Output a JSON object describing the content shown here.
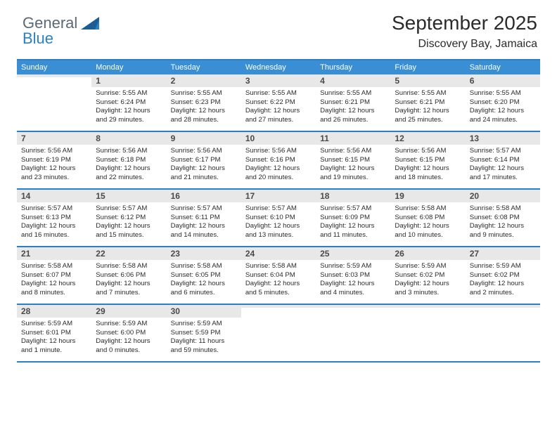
{
  "brand": {
    "part1": "General",
    "part2": "Blue"
  },
  "header": {
    "title": "September 2025",
    "location": "Discovery Bay, Jamaica"
  },
  "colors": {
    "accent": "#2d7fc4",
    "header_row": "#3a8fd4",
    "daynum_bg": "#e8e8e8",
    "logo_gray": "#5a6a74"
  },
  "dayNames": [
    "Sunday",
    "Monday",
    "Tuesday",
    "Wednesday",
    "Thursday",
    "Friday",
    "Saturday"
  ],
  "weeks": [
    [
      {
        "n": "",
        "sunrise": "",
        "sunset": "",
        "daylight": ""
      },
      {
        "n": "1",
        "sunrise": "Sunrise: 5:55 AM",
        "sunset": "Sunset: 6:24 PM",
        "daylight": "Daylight: 12 hours and 29 minutes."
      },
      {
        "n": "2",
        "sunrise": "Sunrise: 5:55 AM",
        "sunset": "Sunset: 6:23 PM",
        "daylight": "Daylight: 12 hours and 28 minutes."
      },
      {
        "n": "3",
        "sunrise": "Sunrise: 5:55 AM",
        "sunset": "Sunset: 6:22 PM",
        "daylight": "Daylight: 12 hours and 27 minutes."
      },
      {
        "n": "4",
        "sunrise": "Sunrise: 5:55 AM",
        "sunset": "Sunset: 6:21 PM",
        "daylight": "Daylight: 12 hours and 26 minutes."
      },
      {
        "n": "5",
        "sunrise": "Sunrise: 5:55 AM",
        "sunset": "Sunset: 6:21 PM",
        "daylight": "Daylight: 12 hours and 25 minutes."
      },
      {
        "n": "6",
        "sunrise": "Sunrise: 5:55 AM",
        "sunset": "Sunset: 6:20 PM",
        "daylight": "Daylight: 12 hours and 24 minutes."
      }
    ],
    [
      {
        "n": "7",
        "sunrise": "Sunrise: 5:56 AM",
        "sunset": "Sunset: 6:19 PM",
        "daylight": "Daylight: 12 hours and 23 minutes."
      },
      {
        "n": "8",
        "sunrise": "Sunrise: 5:56 AM",
        "sunset": "Sunset: 6:18 PM",
        "daylight": "Daylight: 12 hours and 22 minutes."
      },
      {
        "n": "9",
        "sunrise": "Sunrise: 5:56 AM",
        "sunset": "Sunset: 6:17 PM",
        "daylight": "Daylight: 12 hours and 21 minutes."
      },
      {
        "n": "10",
        "sunrise": "Sunrise: 5:56 AM",
        "sunset": "Sunset: 6:16 PM",
        "daylight": "Daylight: 12 hours and 20 minutes."
      },
      {
        "n": "11",
        "sunrise": "Sunrise: 5:56 AM",
        "sunset": "Sunset: 6:15 PM",
        "daylight": "Daylight: 12 hours and 19 minutes."
      },
      {
        "n": "12",
        "sunrise": "Sunrise: 5:56 AM",
        "sunset": "Sunset: 6:15 PM",
        "daylight": "Daylight: 12 hours and 18 minutes."
      },
      {
        "n": "13",
        "sunrise": "Sunrise: 5:57 AM",
        "sunset": "Sunset: 6:14 PM",
        "daylight": "Daylight: 12 hours and 17 minutes."
      }
    ],
    [
      {
        "n": "14",
        "sunrise": "Sunrise: 5:57 AM",
        "sunset": "Sunset: 6:13 PM",
        "daylight": "Daylight: 12 hours and 16 minutes."
      },
      {
        "n": "15",
        "sunrise": "Sunrise: 5:57 AM",
        "sunset": "Sunset: 6:12 PM",
        "daylight": "Daylight: 12 hours and 15 minutes."
      },
      {
        "n": "16",
        "sunrise": "Sunrise: 5:57 AM",
        "sunset": "Sunset: 6:11 PM",
        "daylight": "Daylight: 12 hours and 14 minutes."
      },
      {
        "n": "17",
        "sunrise": "Sunrise: 5:57 AM",
        "sunset": "Sunset: 6:10 PM",
        "daylight": "Daylight: 12 hours and 13 minutes."
      },
      {
        "n": "18",
        "sunrise": "Sunrise: 5:57 AM",
        "sunset": "Sunset: 6:09 PM",
        "daylight": "Daylight: 12 hours and 11 minutes."
      },
      {
        "n": "19",
        "sunrise": "Sunrise: 5:58 AM",
        "sunset": "Sunset: 6:08 PM",
        "daylight": "Daylight: 12 hours and 10 minutes."
      },
      {
        "n": "20",
        "sunrise": "Sunrise: 5:58 AM",
        "sunset": "Sunset: 6:08 PM",
        "daylight": "Daylight: 12 hours and 9 minutes."
      }
    ],
    [
      {
        "n": "21",
        "sunrise": "Sunrise: 5:58 AM",
        "sunset": "Sunset: 6:07 PM",
        "daylight": "Daylight: 12 hours and 8 minutes."
      },
      {
        "n": "22",
        "sunrise": "Sunrise: 5:58 AM",
        "sunset": "Sunset: 6:06 PM",
        "daylight": "Daylight: 12 hours and 7 minutes."
      },
      {
        "n": "23",
        "sunrise": "Sunrise: 5:58 AM",
        "sunset": "Sunset: 6:05 PM",
        "daylight": "Daylight: 12 hours and 6 minutes."
      },
      {
        "n": "24",
        "sunrise": "Sunrise: 5:58 AM",
        "sunset": "Sunset: 6:04 PM",
        "daylight": "Daylight: 12 hours and 5 minutes."
      },
      {
        "n": "25",
        "sunrise": "Sunrise: 5:59 AM",
        "sunset": "Sunset: 6:03 PM",
        "daylight": "Daylight: 12 hours and 4 minutes."
      },
      {
        "n": "26",
        "sunrise": "Sunrise: 5:59 AM",
        "sunset": "Sunset: 6:02 PM",
        "daylight": "Daylight: 12 hours and 3 minutes."
      },
      {
        "n": "27",
        "sunrise": "Sunrise: 5:59 AM",
        "sunset": "Sunset: 6:02 PM",
        "daylight": "Daylight: 12 hours and 2 minutes."
      }
    ],
    [
      {
        "n": "28",
        "sunrise": "Sunrise: 5:59 AM",
        "sunset": "Sunset: 6:01 PM",
        "daylight": "Daylight: 12 hours and 1 minute."
      },
      {
        "n": "29",
        "sunrise": "Sunrise: 5:59 AM",
        "sunset": "Sunset: 6:00 PM",
        "daylight": "Daylight: 12 hours and 0 minutes."
      },
      {
        "n": "30",
        "sunrise": "Sunrise: 5:59 AM",
        "sunset": "Sunset: 5:59 PM",
        "daylight": "Daylight: 11 hours and 59 minutes."
      },
      {
        "n": "",
        "sunrise": "",
        "sunset": "",
        "daylight": ""
      },
      {
        "n": "",
        "sunrise": "",
        "sunset": "",
        "daylight": ""
      },
      {
        "n": "",
        "sunrise": "",
        "sunset": "",
        "daylight": ""
      },
      {
        "n": "",
        "sunrise": "",
        "sunset": "",
        "daylight": ""
      }
    ]
  ]
}
